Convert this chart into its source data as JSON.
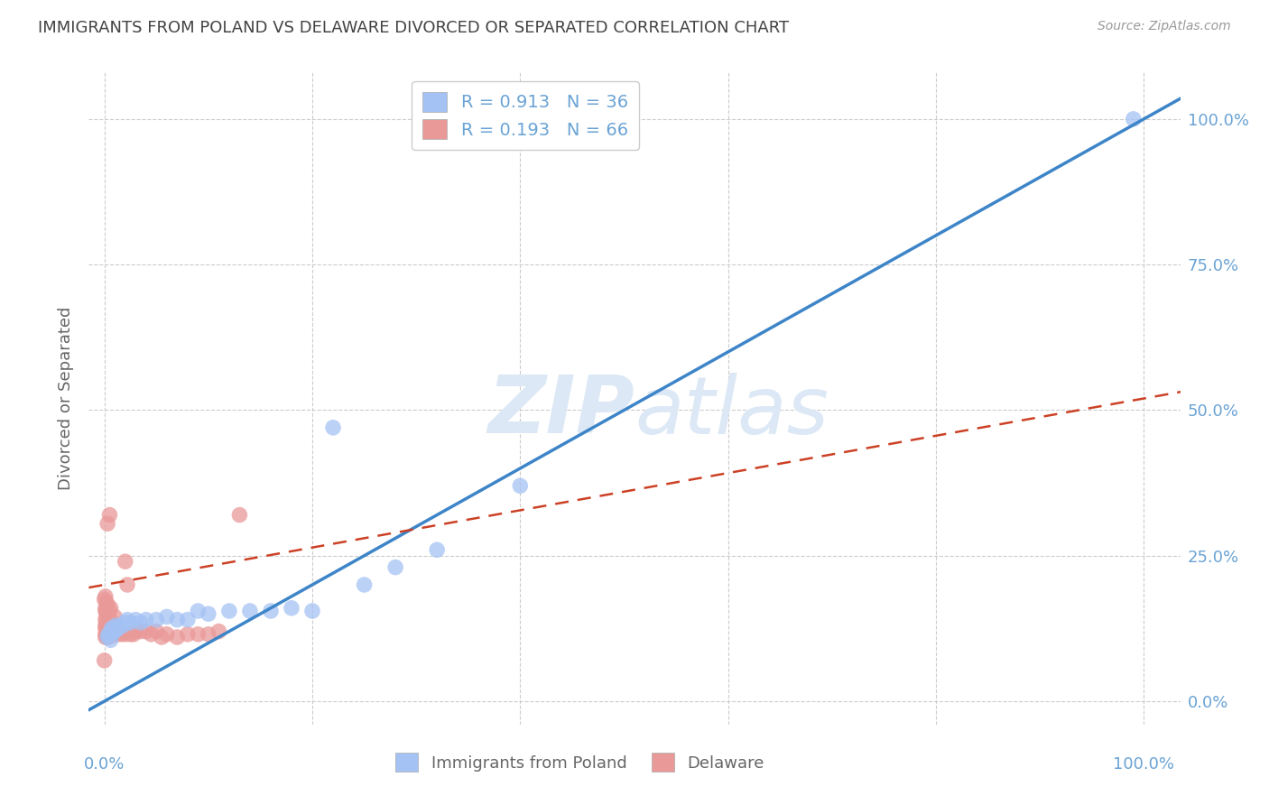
{
  "title": "IMMIGRANTS FROM POLAND VS DELAWARE DIVORCED OR SEPARATED CORRELATION CHART",
  "source": "Source: ZipAtlas.com",
  "ylabel": "Divorced or Separated",
  "legend_label1": "Immigrants from Poland",
  "legend_label2": "Delaware",
  "R1": 0.913,
  "N1": 36,
  "R2": 0.193,
  "N2": 66,
  "blue_color": "#a4c2f4",
  "pink_color": "#ea9999",
  "blue_line_color": "#3d85c8",
  "pink_line_color": "#cc4125",
  "title_color": "#434343",
  "axis_color": "#6aa3d5",
  "watermark_color": "#dce8f5",
  "background_color": "#ffffff",
  "grid_color": "#cccccc",
  "blue_slope": 1.0,
  "blue_intercept": 0.0,
  "pink_slope": 0.32,
  "pink_intercept": 0.2,
  "blue_x": [
    0.003,
    0.004,
    0.005,
    0.006,
    0.007,
    0.008,
    0.009,
    0.01,
    0.011,
    0.012,
    0.013,
    0.015,
    0.018,
    0.02,
    0.022,
    0.025,
    0.03,
    0.035,
    0.04,
    0.05,
    0.06,
    0.07,
    0.08,
    0.09,
    0.1,
    0.12,
    0.14,
    0.16,
    0.18,
    0.2,
    0.22,
    0.25,
    0.28,
    0.32,
    0.4,
    0.99
  ],
  "blue_y": [
    0.11,
    0.115,
    0.115,
    0.105,
    0.125,
    0.125,
    0.12,
    0.12,
    0.13,
    0.125,
    0.125,
    0.13,
    0.13,
    0.135,
    0.14,
    0.135,
    0.14,
    0.135,
    0.14,
    0.14,
    0.145,
    0.14,
    0.14,
    0.155,
    0.15,
    0.155,
    0.155,
    0.155,
    0.16,
    0.155,
    0.47,
    0.2,
    0.23,
    0.26,
    0.37,
    1.0
  ],
  "pink_x": [
    0.0,
    0.001,
    0.001,
    0.001,
    0.001,
    0.001,
    0.001,
    0.001,
    0.001,
    0.002,
    0.002,
    0.002,
    0.002,
    0.002,
    0.002,
    0.002,
    0.002,
    0.003,
    0.003,
    0.003,
    0.003,
    0.003,
    0.003,
    0.003,
    0.004,
    0.004,
    0.004,
    0.005,
    0.005,
    0.005,
    0.006,
    0.006,
    0.006,
    0.007,
    0.008,
    0.008,
    0.009,
    0.01,
    0.01,
    0.011,
    0.012,
    0.013,
    0.015,
    0.016,
    0.018,
    0.02,
    0.022,
    0.025,
    0.028,
    0.03,
    0.035,
    0.04,
    0.045,
    0.05,
    0.055,
    0.06,
    0.07,
    0.08,
    0.09,
    0.1,
    0.11,
    0.13,
    0.02,
    0.005,
    0.003,
    0.0
  ],
  "pink_y": [
    0.175,
    0.11,
    0.115,
    0.125,
    0.13,
    0.14,
    0.155,
    0.16,
    0.18,
    0.11,
    0.115,
    0.12,
    0.125,
    0.135,
    0.145,
    0.155,
    0.17,
    0.11,
    0.115,
    0.12,
    0.125,
    0.13,
    0.155,
    0.165,
    0.11,
    0.12,
    0.14,
    0.115,
    0.125,
    0.155,
    0.115,
    0.13,
    0.16,
    0.12,
    0.115,
    0.135,
    0.12,
    0.115,
    0.145,
    0.125,
    0.115,
    0.12,
    0.125,
    0.115,
    0.12,
    0.115,
    0.2,
    0.115,
    0.115,
    0.12,
    0.12,
    0.12,
    0.115,
    0.12,
    0.11,
    0.115,
    0.11,
    0.115,
    0.115,
    0.115,
    0.12,
    0.32,
    0.24,
    0.32,
    0.305,
    0.07
  ]
}
